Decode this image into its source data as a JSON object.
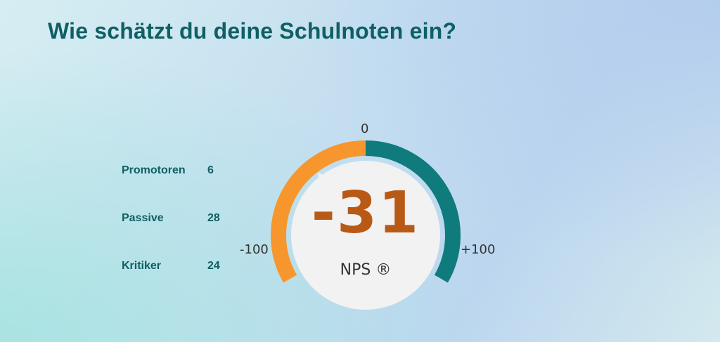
{
  "question": {
    "title": "Wie schätzt du deine Schulnoten ein?"
  },
  "breakdown": [
    {
      "label": "Promotoren",
      "value": "6"
    },
    {
      "label": "Passive",
      "value": "28"
    },
    {
      "label": "Kritiker",
      "value": "24"
    }
  ],
  "gauge": {
    "score_label": "-31",
    "score": -31,
    "min": -100,
    "max": 100,
    "min_label": "-100",
    "mid_label": "0",
    "max_label": "+100",
    "metric_label": "NPS ®",
    "colors": {
      "negative": "#f7962d",
      "positive": "#0f7b7d",
      "score_text": "#b85a16",
      "center": "#f2f2f2"
    }
  }
}
